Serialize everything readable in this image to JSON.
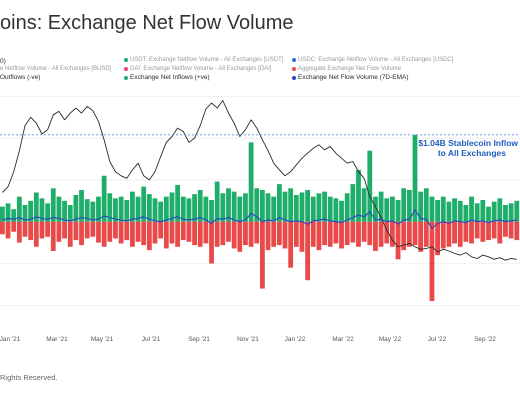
{
  "page": {
    "title": "oins: Exchange Net Flow Volume",
    "footer": "Rights Reserved."
  },
  "legend": {
    "top_row": [
      {
        "label": "0)",
        "color": "#1a1a1a",
        "strong": true
      },
      {
        "label": "USDT: Exchange Netflow Volume - All Exchanges [USDT]",
        "color": "#1fae6a",
        "strong": false
      },
      {
        "label": "USDC: Exchange Netflow Volume - All Exchanges [USDC]",
        "color": "#2c6fd6",
        "strong": false
      }
    ],
    "middle_row": [
      {
        "label": "e Netflow Volume - All Exchanges [BUSD]",
        "color": "#e3b600",
        "strong": false
      },
      {
        "label": "DAI: Exchange Netflow Volume - All Exchanges [DAI]",
        "color": "#e0457b",
        "strong": false
      },
      {
        "label": "Aggregate Exchange Net Flow Volume",
        "color": "#e84a4a",
        "strong": false
      }
    ],
    "bottom_row": [
      {
        "label": "Outflows (-ve)",
        "color": "#e84a4a",
        "strong": true
      },
      {
        "label": "Exchange Net Inflows (+ve)",
        "color": "#1fae6a",
        "strong": true
      },
      {
        "label": "Exchange Net Flow Volume (7D-EMA)",
        "color": "#2c44c8",
        "strong": true
      }
    ]
  },
  "annotation": {
    "line1": "$1.04B Stablecoin Inflow",
    "line2": "to All Exchanges"
  },
  "colors": {
    "inflow": "#1fae6a",
    "outflow": "#e84a4a",
    "ema": "#2c44c8",
    "price": "#2a2a2a",
    "reference_line": "#5b8fe0",
    "grid": "#e6e6e6"
  },
  "chart_data": {
    "type": "bar",
    "x_axis": {
      "tick_labels": [
        "Jan '21",
        "Mar '21",
        "May '21",
        "Jul '21",
        "Sep '21",
        "Nov '21",
        "Jan '22",
        "Mar '22",
        "May '22",
        "Jul '22",
        "Sep '22"
      ]
    },
    "series": [
      {
        "name": "Exchange Net Inflows (+ve)",
        "type": "bar",
        "values": [
          0.18,
          0.22,
          0.15,
          0.3,
          0.2,
          0.25,
          0.35,
          0.28,
          0.22,
          0.4,
          0.3,
          0.25,
          0.2,
          0.32,
          0.38,
          0.27,
          0.24,
          0.3,
          0.55,
          0.34,
          0.28,
          0.3,
          0.26,
          0.36,
          0.3,
          0.42,
          0.33,
          0.28,
          0.24,
          0.3,
          0.35,
          0.44,
          0.3,
          0.28,
          0.33,
          0.38,
          0.3,
          0.26,
          0.48,
          0.34,
          0.4,
          0.36,
          0.3,
          0.34,
          0.95,
          0.4,
          0.38,
          0.34,
          0.3,
          0.45,
          0.36,
          0.4,
          0.32,
          0.35,
          0.38,
          0.3,
          0.34,
          0.36,
          0.3,
          0.28,
          0.25,
          0.34,
          0.45,
          0.62,
          0.4,
          0.85,
          0.3,
          0.36,
          0.28,
          0.3,
          0.26,
          0.4,
          0.38,
          1.04,
          0.36,
          0.4,
          0.3,
          0.26,
          0.3,
          0.24,
          0.28,
          0.25,
          0.2,
          0.3,
          0.22,
          0.26,
          0.18,
          0.24,
          0.28,
          0.2,
          0.22,
          0.25
        ],
        "color": "#1fae6a"
      },
      {
        "name": "Outflows (-ve)",
        "type": "bar",
        "values": [
          -0.15,
          -0.2,
          -0.12,
          -0.25,
          -0.18,
          -0.22,
          -0.3,
          -0.2,
          -0.18,
          -0.35,
          -0.24,
          -0.2,
          -0.3,
          -0.22,
          -0.28,
          -0.2,
          -0.18,
          -0.25,
          -0.3,
          -0.24,
          -0.2,
          -0.26,
          -0.22,
          -0.3,
          -0.24,
          -0.28,
          -0.34,
          -0.26,
          -0.2,
          -0.32,
          -0.26,
          -0.3,
          -0.22,
          -0.24,
          -0.28,
          -0.3,
          -0.26,
          -0.5,
          -0.3,
          -0.28,
          -0.24,
          -0.32,
          -0.36,
          -0.28,
          -0.3,
          -0.26,
          -0.8,
          -0.34,
          -0.3,
          -0.28,
          -0.32,
          -0.55,
          -0.3,
          -0.36,
          -0.7,
          -0.3,
          -0.34,
          -0.28,
          -0.3,
          -0.26,
          -0.32,
          -0.28,
          -0.25,
          -0.3,
          -0.24,
          -0.28,
          -0.35,
          -0.3,
          -0.26,
          -0.3,
          -0.45,
          -0.34,
          -0.3,
          -0.28,
          -0.36,
          -0.3,
          -0.95,
          -0.4,
          -0.32,
          -0.3,
          -0.26,
          -0.3,
          -0.24,
          -0.26,
          -0.2,
          -0.24,
          -0.22,
          -0.2,
          -0.26,
          -0.18,
          -0.2,
          -0.22
        ],
        "color": "#e84a4a"
      },
      {
        "name": "Exchange Net Flow Volume (7D-EMA)",
        "type": "line",
        "values": [
          0.02,
          0.04,
          0.03,
          0.05,
          0.02,
          0.03,
          0.06,
          0.04,
          0.03,
          0.05,
          0.04,
          0.02,
          0.01,
          0.03,
          0.05,
          0.04,
          0.02,
          0.03,
          0.07,
          0.05,
          0.03,
          0.02,
          0.01,
          0.03,
          0.04,
          0.06,
          0.03,
          0.01,
          0.0,
          0.02,
          0.04,
          0.06,
          0.03,
          0.02,
          0.03,
          0.05,
          0.02,
          -0.02,
          0.04,
          0.03,
          0.05,
          0.02,
          0.0,
          0.02,
          0.1,
          0.06,
          0.0,
          0.02,
          0.01,
          0.05,
          0.02,
          0.0,
          0.01,
          0.0,
          -0.03,
          0.01,
          0.02,
          0.03,
          0.01,
          0.0,
          -0.01,
          0.02,
          0.05,
          0.08,
          0.06,
          0.12,
          0.02,
          0.03,
          0.0,
          0.01,
          -0.03,
          0.02,
          0.03,
          0.14,
          0.04,
          0.03,
          -0.08,
          -0.02,
          0.0,
          -0.02,
          0.01,
          0.0,
          -0.01,
          0.02,
          0.0,
          0.01,
          -0.01,
          0.01,
          0.02,
          0.0,
          0.01,
          0.02
        ],
        "color": "#2c44c8"
      },
      {
        "type": "line",
        "values": [
          0.35,
          0.42,
          0.6,
          0.85,
          1.15,
          1.25,
          1.18,
          1.05,
          1.1,
          1.28,
          1.32,
          1.22,
          1.3,
          1.36,
          1.3,
          1.38,
          1.33,
          1.2,
          0.98,
          0.72,
          0.6,
          0.55,
          0.52,
          0.62,
          0.7,
          0.55,
          0.5,
          0.6,
          0.78,
          0.95,
          1.02,
          1.12,
          1.08,
          0.95,
          1.0,
          1.15,
          1.35,
          1.42,
          1.36,
          1.45,
          1.3,
          1.18,
          1.02,
          1.1,
          1.22,
          1.12,
          0.98,
          0.85,
          0.7,
          0.62,
          0.55,
          0.6,
          0.68,
          0.76,
          0.82,
          0.88,
          0.92,
          0.86,
          0.9,
          0.82,
          0.76,
          0.7,
          0.72,
          0.6,
          0.52,
          0.3,
          0.18,
          0.05,
          -0.1,
          -0.22,
          -0.3,
          -0.28,
          -0.26,
          -0.3,
          -0.33,
          -0.32,
          -0.3,
          -0.36,
          -0.33,
          -0.35,
          -0.38,
          -0.4,
          -0.37,
          -0.42,
          -0.44,
          -0.4,
          -0.42,
          -0.45,
          -0.43,
          -0.46,
          -0.44,
          -0.45
        ],
        "color": "#2a2a2a"
      }
    ],
    "reference_lines": [
      {
        "y": 1.04,
        "style": "dashed",
        "color": "#5b8fe0"
      }
    ],
    "ylim": [
      -1.2,
      1.6
    ],
    "grid": true
  }
}
